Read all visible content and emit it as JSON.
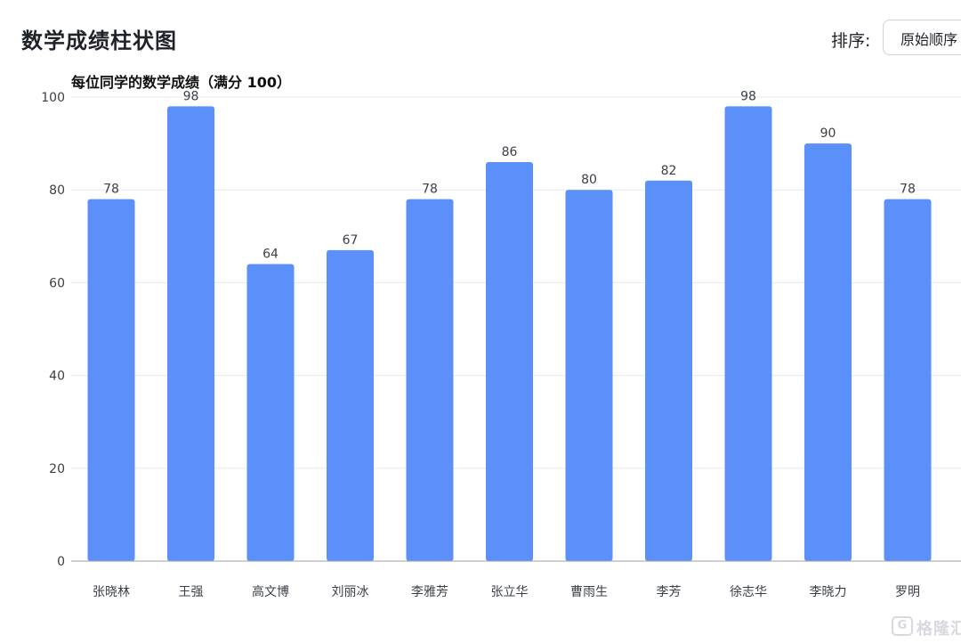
{
  "header": {
    "title": "数学成绩柱状图",
    "sort_label": "排序:",
    "sort_value": "原始顺序"
  },
  "chart_data": {
    "type": "bar",
    "title": "每位同学的数学成绩（满分 100）",
    "categories": [
      "张晓林",
      "王强",
      "高文博",
      "刘丽冰",
      "李雅芳",
      "张立华",
      "曹雨生",
      "李芳",
      "徐志华",
      "李晓力",
      "罗明"
    ],
    "values": [
      78,
      98,
      64,
      67,
      78,
      86,
      80,
      82,
      98,
      90,
      78
    ],
    "ylim": [
      0,
      100
    ],
    "yticks": [
      0,
      20,
      40,
      60,
      80,
      100
    ],
    "xlabel": "",
    "ylabel": "",
    "grid": true,
    "bar_color": "#5b8ff9"
  },
  "watermark": {
    "icon_char": "G",
    "text": "格隆汇"
  }
}
